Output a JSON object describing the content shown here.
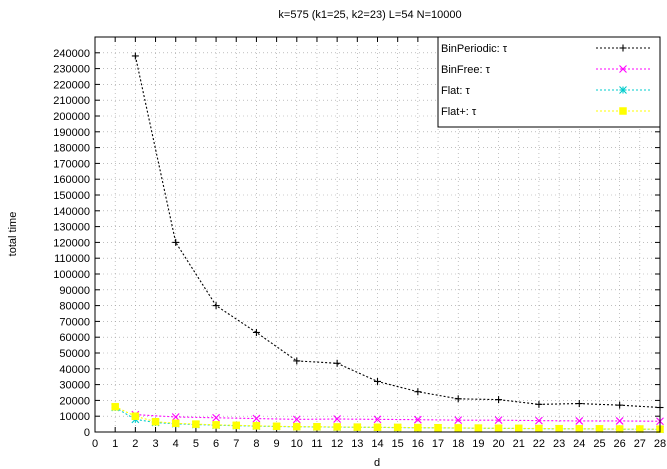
{
  "chart_data": {
    "type": "line",
    "title": "k=575 (k1=25, k2=23) L=54  N=10000",
    "xlabel": "d",
    "ylabel": "total time",
    "xlim": [
      0,
      28
    ],
    "ylim": [
      0,
      250000
    ],
    "xticks": [
      0,
      1,
      2,
      3,
      4,
      5,
      6,
      7,
      8,
      9,
      10,
      11,
      12,
      13,
      14,
      15,
      16,
      17,
      18,
      19,
      20,
      21,
      22,
      23,
      24,
      25,
      26,
      27,
      28
    ],
    "yticks": [
      0,
      10000,
      20000,
      30000,
      40000,
      50000,
      60000,
      70000,
      80000,
      90000,
      100000,
      110000,
      120000,
      130000,
      140000,
      150000,
      160000,
      170000,
      180000,
      190000,
      200000,
      210000,
      220000,
      230000,
      240000
    ],
    "grid": true,
    "legend_position": "top-right",
    "series": [
      {
        "name": "BinPeriodic: τ",
        "color": "#000000",
        "marker": "plus",
        "x": [
          2,
          4,
          6,
          8,
          10,
          12,
          14,
          16,
          18,
          20,
          22,
          24,
          26,
          28
        ],
        "y": [
          238000,
          120000,
          80000,
          63000,
          45000,
          43500,
          32000,
          25500,
          21000,
          20500,
          17500,
          18000,
          17000,
          15500
        ]
      },
      {
        "name": "BinFree: τ",
        "color": "#ff00ff",
        "marker": "x",
        "x": [
          2,
          4,
          6,
          8,
          10,
          12,
          14,
          16,
          18,
          20,
          22,
          24,
          26,
          28
        ],
        "y": [
          11000,
          9500,
          9000,
          8500,
          8000,
          8200,
          8000,
          7800,
          7500,
          7500,
          7200,
          7000,
          7000,
          6800
        ]
      },
      {
        "name": "Flat: τ",
        "color": "#00cccc",
        "marker": "star",
        "x": [
          1,
          2,
          3,
          4,
          5,
          6,
          7,
          8,
          9,
          10,
          11,
          12,
          13,
          14,
          15,
          16,
          17,
          18,
          19,
          20,
          21,
          22,
          23,
          24,
          25,
          26,
          27,
          28
        ],
        "y": [
          15500,
          8000,
          6000,
          5200,
          4700,
          4300,
          4000,
          3700,
          3500,
          3300,
          3200,
          3100,
          3000,
          2900,
          2800,
          2700,
          2600,
          2500,
          2400,
          2300,
          2200,
          2100,
          2000,
          2000,
          1900,
          1800,
          1800,
          1700
        ]
      },
      {
        "name": "Flat+: τ",
        "color": "#ffff00",
        "marker": "square",
        "x": [
          1,
          2,
          3,
          4,
          5,
          6,
          7,
          8,
          9,
          10,
          11,
          12,
          13,
          14,
          15,
          16,
          17,
          18,
          19,
          20,
          21,
          22,
          23,
          24,
          25,
          26,
          27,
          28
        ],
        "y": [
          16000,
          10000,
          6500,
          5500,
          5000,
          4500,
          4200,
          3900,
          3600,
          3400,
          3300,
          3200,
          3100,
          3000,
          2900,
          2800,
          2700,
          2600,
          2500,
          2400,
          2300,
          2200,
          2100,
          2000,
          2000,
          1900,
          1900,
          1800
        ]
      }
    ]
  }
}
